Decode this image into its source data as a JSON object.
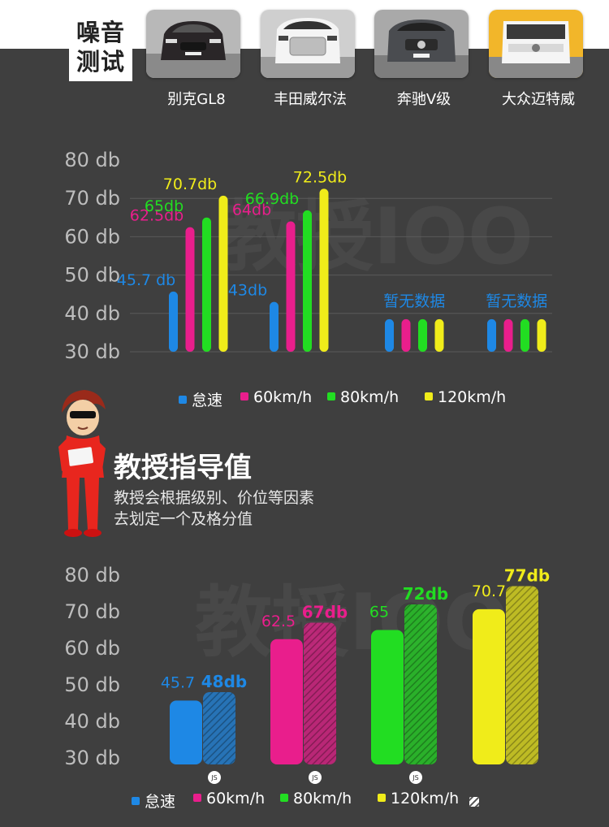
{
  "header": {
    "title_line1": "噪音",
    "title_line2": "测试",
    "cars": [
      {
        "name": "别克GL8"
      },
      {
        "name": "丰田威尔法"
      },
      {
        "name": "奔驰V级"
      },
      {
        "name": "大众迈特威"
      }
    ]
  },
  "watermark": "教授IOO",
  "chart_data": [
    {
      "type": "bar",
      "ylim": [
        30,
        80
      ],
      "yticks": [
        "80 db",
        "70 db",
        "60 db",
        "50 db",
        "40 db",
        "30 db"
      ],
      "groups": [
        {
          "car": "别克GL8",
          "values": [
            45.7,
            62.5,
            65,
            70.7
          ],
          "labels": [
            "45.7 db",
            "62.5db",
            "65db",
            "70.7db"
          ]
        },
        {
          "car": "丰田威尔法",
          "values": [
            43,
            64,
            66.9,
            72.5
          ],
          "labels": [
            "43db",
            "64db",
            "66.9db",
            "72.5db"
          ]
        },
        {
          "car": "奔驰V级",
          "values": [
            null,
            null,
            null,
            null
          ],
          "no_data_label": "暂无数据"
        },
        {
          "car": "大众迈特威",
          "values": [
            null,
            null,
            null,
            null
          ],
          "no_data_label": "暂无数据"
        }
      ],
      "series": [
        {
          "name": "怠速",
          "color": "#1e88e5"
        },
        {
          "name": "60km/h",
          "color": "#e91e8c"
        },
        {
          "name": "80km/h",
          "color": "#22dd22"
        },
        {
          "name": "120km/h",
          "color": "#f0ec1a"
        }
      ]
    },
    {
      "type": "bar",
      "ylim": [
        30,
        80
      ],
      "yticks": [
        "80 db",
        "70 db",
        "60 db",
        "50 db",
        "40 db",
        "30 db"
      ],
      "pairs": [
        {
          "series": "怠速",
          "color": "#1e88e5",
          "measured": 45.7,
          "measured_label": "45.7",
          "guide": 48,
          "guide_label": "48db",
          "badge": "JS"
        },
        {
          "series": "60km/h",
          "color": "#e91e8c",
          "measured": 62.5,
          "measured_label": "62.5",
          "guide": 67,
          "guide_label": "67db",
          "badge": "JS"
        },
        {
          "series": "80km/h",
          "color": "#22dd22",
          "measured": 65,
          "measured_label": "65",
          "guide": 72,
          "guide_label": "72db",
          "badge": "JS"
        },
        {
          "series": "120km/h",
          "color": "#f0ec1a",
          "measured": 70.7,
          "measured_label": "70.7",
          "guide": 77,
          "guide_label": "77db",
          "badge": ""
        }
      ],
      "legend": [
        {
          "name": "怠速",
          "color": "#1e88e5"
        },
        {
          "name": "60km/h",
          "color": "#e91e8c"
        },
        {
          "name": "80km/h",
          "color": "#22dd22"
        },
        {
          "name": "120km/h",
          "color": "#f0ec1a"
        }
      ]
    }
  ],
  "guide_section": {
    "title": "教授指导值",
    "desc_line1": "教授会根据级别、价位等因素",
    "desc_line2": "去划定一个及格分值"
  }
}
